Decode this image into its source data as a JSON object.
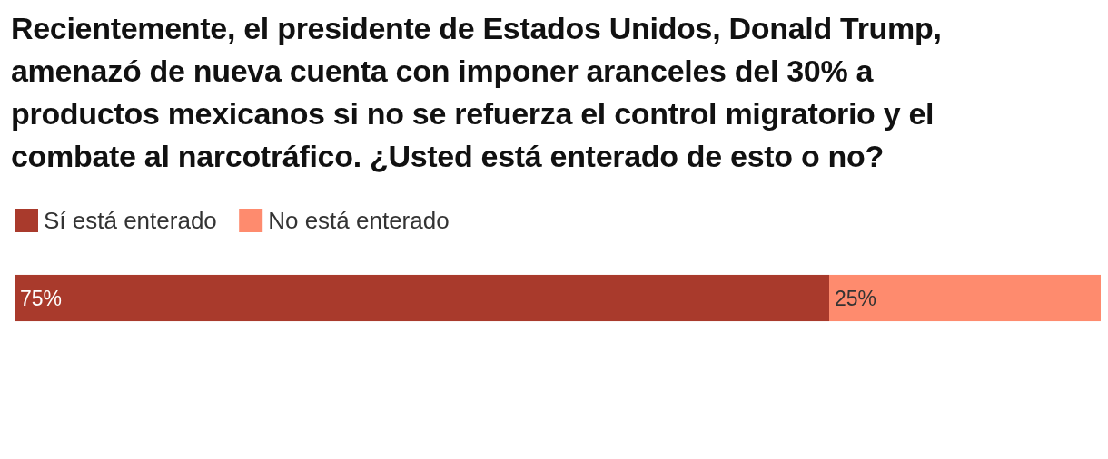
{
  "chart_data": {
    "type": "bar",
    "orientation": "horizontal",
    "stacked": true,
    "title": "Recientemente, el presidente de Estados Unidos, Donald Trump, amenazó de nueva cuenta con imponer aranceles del 30% a productos mexicanos si no se refuerza el control migratorio y el combate al narcotráfico. ¿Usted está enterado de esto o no?",
    "categories": [
      null
    ],
    "xlim": [
      0,
      100
    ],
    "tick_labels": false,
    "legend": "top left",
    "series": [
      {
        "name": "Sí está enterado",
        "color": "#a93a2c",
        "values": [
          75
        ],
        "value_labels": [
          "75%"
        ]
      },
      {
        "name": "No está enterado",
        "color": "#fe8b6e",
        "values": [
          25
        ],
        "value_labels": [
          "25%"
        ]
      }
    ]
  }
}
